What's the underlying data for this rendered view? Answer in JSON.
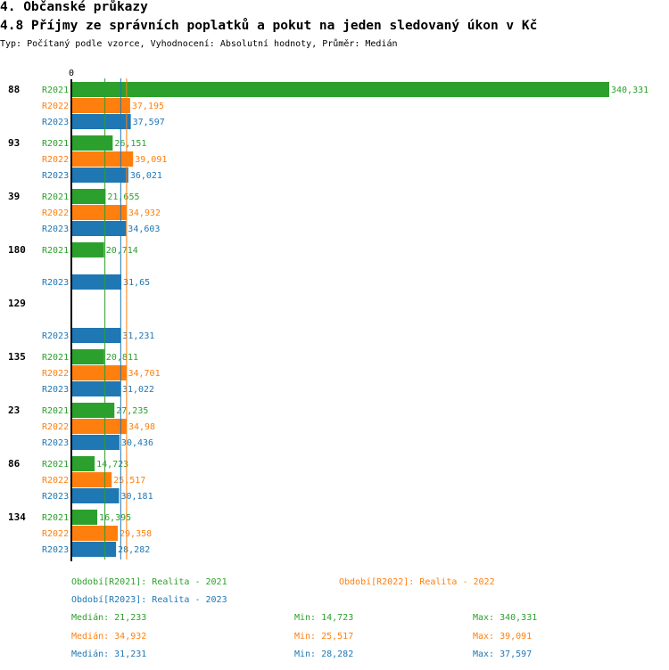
{
  "header": {
    "section": "4. Občanské průkazy",
    "title": "4.8 Příjmy ze správních poplatků a pokut na jeden sledovaný úkon v Kč",
    "subtitle": "Typ: Počítaný podle vzorce, Vyhodnocení: Absolutní hodnoty, Průměr: Medián"
  },
  "colors": {
    "R2021": "#2ca02c",
    "R2022": "#ff7f0e",
    "R2023": "#1f77b4"
  },
  "chart_data": {
    "type": "bar",
    "orientation": "horizontal",
    "axis_zero_label": "0",
    "xlim": [
      0,
      340331
    ],
    "series_names": [
      "R2021",
      "R2022",
      "R2023"
    ],
    "categories": [
      "88",
      "93",
      "39",
      "180",
      "129",
      "135",
      "23",
      "86",
      "134"
    ],
    "groups": [
      {
        "category": "88",
        "bars": [
          {
            "series": "R2021",
            "value": 340331,
            "label": "340,331"
          },
          {
            "series": "R2022",
            "value": 37195,
            "label": "37,195"
          },
          {
            "series": "R2023",
            "value": 37597,
            "label": "37,597"
          }
        ]
      },
      {
        "category": "93",
        "bars": [
          {
            "series": "R2021",
            "value": 26151,
            "label": "26,151"
          },
          {
            "series": "R2022",
            "value": 39091,
            "label": "39,091"
          },
          {
            "series": "R2023",
            "value": 36021,
            "label": "36,021"
          }
        ]
      },
      {
        "category": "39",
        "bars": [
          {
            "series": "R2021",
            "value": 21655,
            "label": "21,655"
          },
          {
            "series": "R2022",
            "value": 34932,
            "label": "34,932"
          },
          {
            "series": "R2023",
            "value": 34603,
            "label": "34,603"
          }
        ]
      },
      {
        "category": "180",
        "bars": [
          {
            "series": "R2021",
            "value": 20714,
            "label": "20,714"
          },
          null,
          {
            "series": "R2023",
            "value": 31650,
            "label": "31,65"
          }
        ]
      },
      {
        "category": "129",
        "bars": [
          null,
          null,
          {
            "series": "R2023",
            "value": 31231,
            "label": "31,231"
          }
        ]
      },
      {
        "category": "135",
        "bars": [
          {
            "series": "R2021",
            "value": 20811,
            "label": "20,811"
          },
          {
            "series": "R2022",
            "value": 34701,
            "label": "34,701"
          },
          {
            "series": "R2023",
            "value": 31022,
            "label": "31,022"
          }
        ]
      },
      {
        "category": "23",
        "bars": [
          {
            "series": "R2021",
            "value": 27235,
            "label": "27,235"
          },
          {
            "series": "R2022",
            "value": 34980,
            "label": "34,98"
          },
          {
            "series": "R2023",
            "value": 30436,
            "label": "30,436"
          }
        ]
      },
      {
        "category": "86",
        "bars": [
          {
            "series": "R2021",
            "value": 14723,
            "label": "14,723"
          },
          {
            "series": "R2022",
            "value": 25517,
            "label": "25,517"
          },
          {
            "series": "R2023",
            "value": 30181,
            "label": "30,181"
          }
        ]
      },
      {
        "category": "134",
        "bars": [
          {
            "series": "R2021",
            "value": 16395,
            "label": "16,395"
          },
          {
            "series": "R2022",
            "value": 29358,
            "label": "29,358"
          },
          {
            "series": "R2023",
            "value": 28282,
            "label": "28,282"
          }
        ]
      }
    ],
    "median_lines": [
      {
        "series": "R2021",
        "value": 21233
      },
      {
        "series": "R2022",
        "value": 34932
      },
      {
        "series": "R2023",
        "value": 31231
      }
    ]
  },
  "legend": {
    "period_r2021": "Období[R2021]: Realita - 2021",
    "period_r2022": "Období[R2022]: Realita - 2022",
    "period_r2023": "Období[R2023]: Realita - 2023"
  },
  "stats": {
    "r2021": {
      "median": "Medián: 21,233",
      "min": "Min: 14,723",
      "max": "Max: 340,331"
    },
    "r2022": {
      "median": "Medián: 34,932",
      "min": "Min: 25,517",
      "max": "Max: 39,091"
    },
    "r2023": {
      "median": "Medián: 31,231",
      "min": "Min: 28,282",
      "max": "Max: 37,597"
    }
  }
}
